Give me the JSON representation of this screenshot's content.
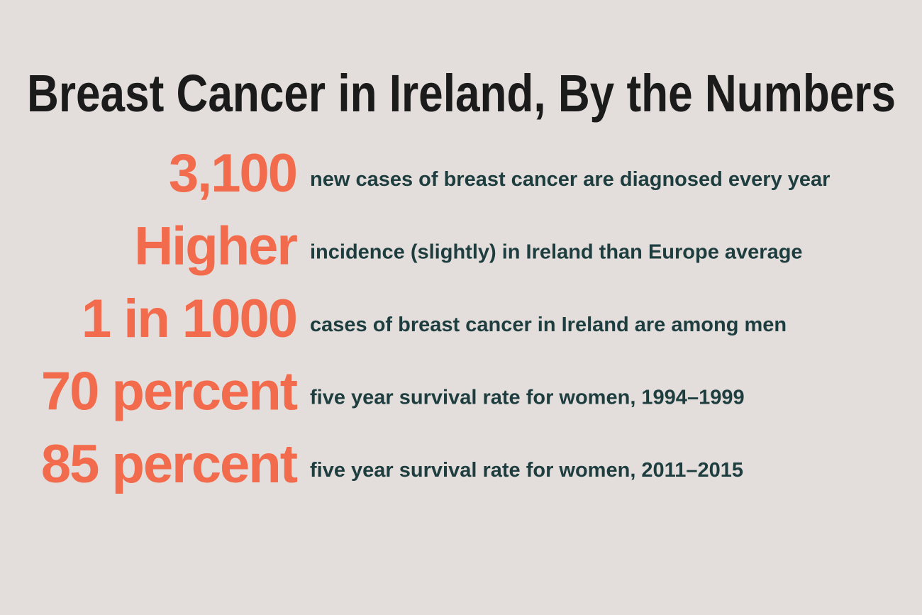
{
  "title": "Breast Cancer in Ireland, By the Numbers",
  "items": [
    {
      "stat": "3,100",
      "text": "new cases of breast cancer are diagnosed every year"
    },
    {
      "stat": "Higher",
      "text": "incidence (slightly) in Ireland than Europe average"
    },
    {
      "stat": "1 in 1000",
      "text": "cases of breast cancer in Ireland are among men"
    },
    {
      "stat": "70 percent",
      "text": "five year survival rate for women, 1994–1999"
    },
    {
      "stat": "85 percent",
      "text": "five year survival rate for women, 2011–2015"
    }
  ]
}
